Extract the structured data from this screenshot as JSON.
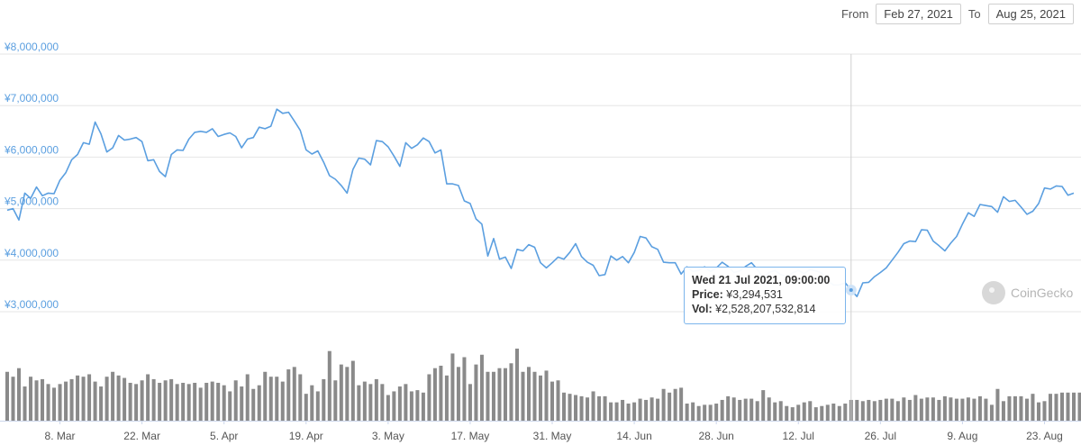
{
  "date_range": {
    "from_label": "From",
    "from_value": "Feb 27, 2021",
    "to_label": "To",
    "to_value": "Aug 25, 2021"
  },
  "tooltip": {
    "date": "Wed 21 Jul 2021, 09:00:00",
    "price_label": "Price:",
    "price_value": "¥3,294,531",
    "vol_label": "Vol:",
    "vol_value": "¥2,528,207,532,814"
  },
  "watermark": "CoinGecko",
  "colors": {
    "line": "#5b9fe0",
    "volume": "#8a8a8a",
    "grid": "#e6e6e6",
    "axis_text": "#5b9fe0"
  },
  "chart_data": {
    "type": "line",
    "ylim": [
      2700000,
      8000000
    ],
    "y_ticks": [
      "¥3,000,000",
      "¥4,000,000",
      "¥5,000,000",
      "¥6,000,000",
      "¥7,000,000",
      "¥8,000,000"
    ],
    "y_tick_values": [
      3000000,
      4000000,
      5000000,
      6000000,
      7000000,
      8000000
    ],
    "x_ticks": [
      {
        "label": "8. Mar",
        "day": 9
      },
      {
        "label": "22. Mar",
        "day": 23
      },
      {
        "label": "5. Apr",
        "day": 37
      },
      {
        "label": "19. Apr",
        "day": 51
      },
      {
        "label": "3. May",
        "day": 65
      },
      {
        "label": "17. May",
        "day": 79
      },
      {
        "label": "31. May",
        "day": 93
      },
      {
        "label": "14. Jun",
        "day": 107
      },
      {
        "label": "28. Jun",
        "day": 121
      },
      {
        "label": "12. Jul",
        "day": 135
      },
      {
        "label": "26. Jul",
        "day": 149
      },
      {
        "label": "9. Aug",
        "day": 163
      },
      {
        "label": "23. Aug",
        "day": 177
      }
    ],
    "crosshair_day": 144,
    "series": [
      {
        "values": [
          4970000,
          5000000,
          4780000,
          5300000,
          5200000,
          5420000,
          5250000,
          5300000,
          5290000,
          5550000,
          5700000,
          5950000,
          6050000,
          6280000,
          6250000,
          6680000,
          6450000,
          6100000,
          6180000,
          6420000,
          6330000,
          6350000,
          6380000,
          6300000,
          5930000,
          5950000,
          5720000,
          5620000,
          6050000,
          6140000,
          6130000,
          6350000,
          6480000,
          6500000,
          6480000,
          6550000,
          6400000,
          6440000,
          6470000,
          6400000,
          6180000,
          6350000,
          6380000,
          6580000,
          6550000,
          6600000,
          6930000,
          6850000,
          6870000,
          6700000,
          6520000,
          6140000,
          6060000,
          6120000,
          5900000,
          5640000,
          5570000,
          5450000,
          5300000,
          5760000,
          5980000,
          5960000,
          5850000,
          6320000,
          6300000,
          6200000,
          6020000,
          5820000,
          6280000,
          6170000,
          6240000,
          6370000,
          6300000,
          6080000,
          6140000,
          5480000,
          5480000,
          5450000,
          5150000,
          5100000,
          4800000,
          4700000,
          4080000,
          4420000,
          4020000,
          4060000,
          3840000,
          4210000,
          4180000,
          4300000,
          4250000,
          3950000,
          3850000,
          3950000,
          4060000,
          4020000,
          4150000,
          4320000,
          4070000,
          3960000,
          3900000,
          3700000,
          3720000,
          4080000,
          4000000,
          4070000,
          3950000,
          4150000,
          4460000,
          4430000,
          4260000,
          4210000,
          3960000,
          3950000,
          3950000,
          3730000,
          3870000,
          3780000,
          3800000,
          3870000,
          3780000,
          3850000,
          3960000,
          3880000,
          3760000,
          3790000,
          3880000,
          3950000,
          3820000,
          3650000,
          3760000,
          3800000,
          3720000,
          3680000,
          3750000,
          3800000,
          3740000,
          3820000,
          3790000,
          3750000,
          3600000,
          3520000,
          3520000,
          3560000,
          3420000,
          3294531,
          3560000,
          3570000,
          3680000,
          3760000,
          3850000,
          4000000,
          4150000,
          4320000,
          4370000,
          4360000,
          4590000,
          4580000,
          4370000,
          4280000,
          4180000,
          4330000,
          4460000,
          4700000,
          4920000,
          4850000,
          5080000,
          5060000,
          5040000,
          4930000,
          5230000,
          5140000,
          5160000,
          5030000,
          4890000,
          4950000,
          5100000,
          5400000,
          5380000,
          5440000,
          5430000,
          5260000,
          5300000
        ]
      }
    ],
    "volume": [
      40,
      36,
      43,
      28,
      36,
      33,
      34,
      30,
      27,
      30,
      32,
      34,
      37,
      36,
      38,
      32,
      28,
      36,
      40,
      37,
      35,
      31,
      30,
      33,
      38,
      34,
      31,
      33,
      34,
      30,
      31,
      30,
      31,
      27,
      31,
      32,
      31,
      29,
      24,
      33,
      28,
      38,
      26,
      29,
      40,
      36,
      36,
      32,
      42,
      44,
      38,
      22,
      29,
      24,
      34,
      57,
      33,
      46,
      44,
      49,
      29,
      32,
      30,
      34,
      30,
      21,
      24,
      28,
      30,
      24,
      25,
      23,
      38,
      43,
      45,
      37,
      55,
      44,
      52,
      30,
      46,
      54,
      40,
      40,
      43,
      43,
      47,
      59,
      40,
      44,
      40,
      37,
      41,
      32,
      33,
      23,
      22,
      21,
      20,
      19,
      24,
      20,
      20,
      15,
      15,
      17,
      14,
      15,
      18,
      17,
      19,
      18,
      26,
      23,
      26,
      27,
      14,
      15,
      12,
      13,
      13,
      14,
      17,
      20,
      19,
      17,
      18,
      18,
      16,
      25,
      19,
      15,
      16,
      12,
      11,
      13,
      15,
      16,
      11,
      12,
      13,
      14,
      12,
      14,
      17,
      17,
      16,
      17,
      16,
      17,
      18,
      18,
      16,
      19,
      17,
      21,
      18,
      19,
      19,
      17,
      20,
      19,
      18,
      18,
      19,
      18,
      20,
      18,
      13,
      26,
      16,
      20,
      20,
      20,
      18,
      22,
      15,
      16,
      22,
      22,
      23,
      23,
      23,
      23,
      24,
      23,
      23,
      24,
      21,
      22,
      21,
      21,
      20,
      22,
      26,
      22,
      22,
      20,
      20,
      21
    ]
  }
}
